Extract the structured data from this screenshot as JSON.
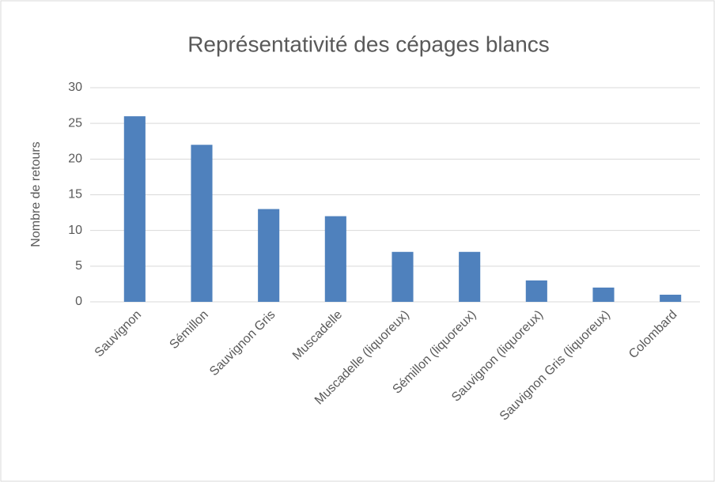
{
  "chart_data": {
    "type": "bar",
    "title": "Représentativité des cépages blancs",
    "y_label": "Nombre de retours",
    "categories": [
      "Sauvignon",
      "Sémillon",
      "Sauvignon Gris",
      "Muscadelle",
      "Muscadelle (liquoreux)",
      "Sémillon (liquoreux)",
      "Sauvignon (liquoreux)",
      "Sauvignon Gris (liquoreux)",
      "Colombard"
    ],
    "values": [
      26,
      22,
      13,
      12,
      7,
      7,
      3,
      2,
      1
    ],
    "color": "#4f81bd",
    "ylim": [
      0,
      30
    ],
    "yticks": [
      0,
      5,
      10,
      15,
      20,
      25,
      30
    ],
    "grid": true
  }
}
